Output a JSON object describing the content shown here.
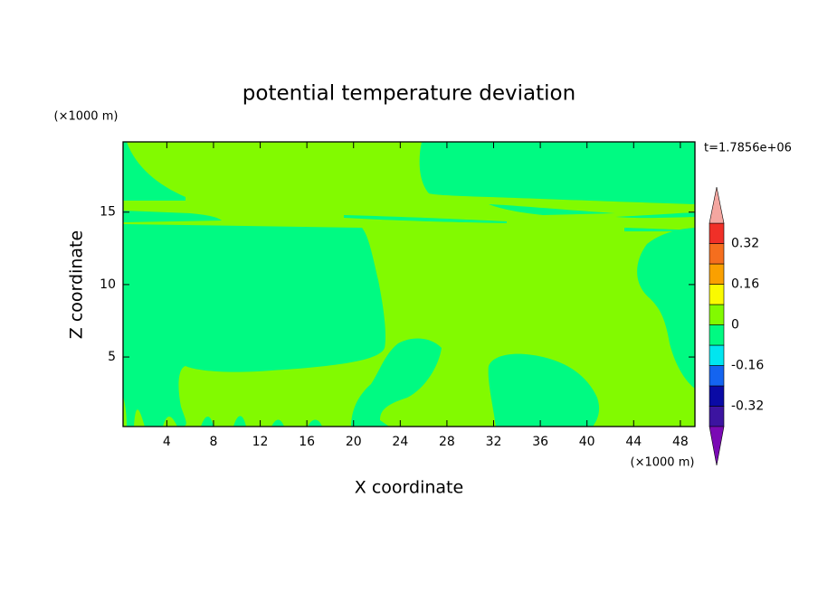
{
  "chart_data": {
    "type": "contour",
    "title": "potential temperature deviation",
    "xlabel": "X coordinate",
    "ylabel": "Z coordinate",
    "x_unit": "(×1000 m)",
    "y_unit": "(×1000 m)",
    "time_label": "t=1.7856e+06",
    "xlim": [
      0.25,
      49.25
    ],
    "ylim": [
      0.2,
      19.85
    ],
    "xticks": [
      4,
      8,
      12,
      16,
      20,
      24,
      28,
      32,
      36,
      40,
      44,
      48
    ],
    "yticks": [
      5,
      10,
      15
    ],
    "levels": [
      -0.4,
      -0.32,
      -0.24,
      -0.16,
      -0.08,
      0,
      0.08,
      0.16,
      0.24,
      0.32,
      0.4
    ],
    "colors": [
      "#7a0ab4",
      "#3c14a0",
      "#0a0aa5",
      "#1464f0",
      "#00e6f0",
      "#00fa82",
      "#82fa00",
      "#fafa00",
      "#faa000",
      "#f56e1e",
      "#f03028",
      "#f4a6a0"
    ],
    "colorbar_ticks": [
      0.32,
      0.16,
      0,
      -0.16,
      -0.32
    ]
  }
}
